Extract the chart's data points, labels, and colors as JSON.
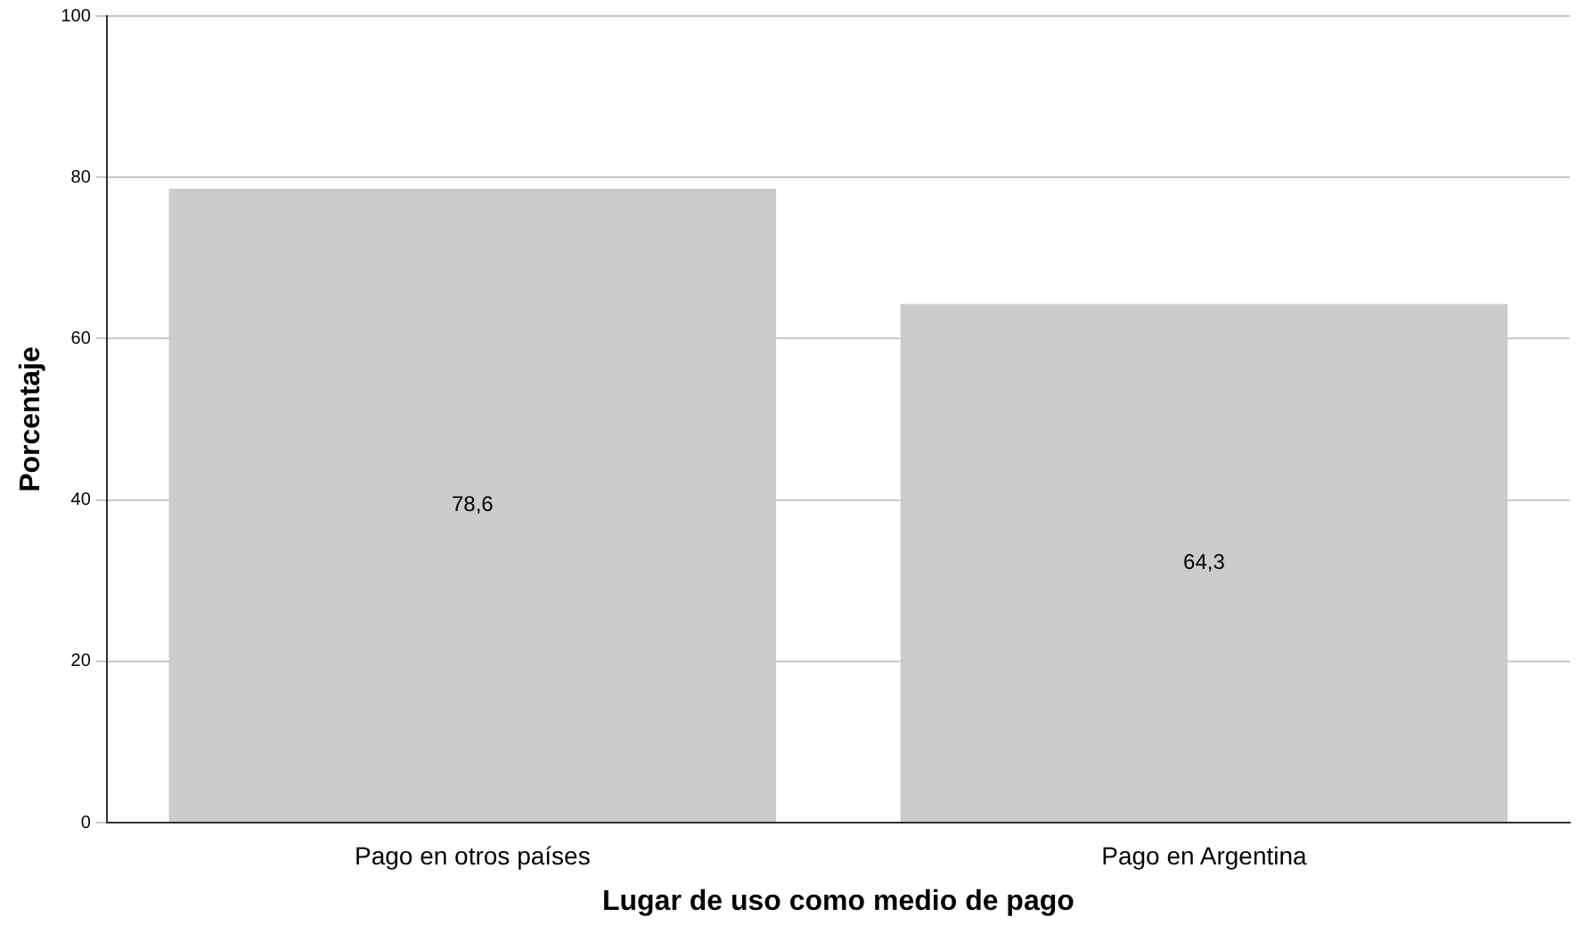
{
  "chart_data": {
    "type": "bar",
    "xlabel": "Lugar de uso como medio de pago",
    "ylabel": "Porcentaje",
    "categories": [
      "Pago en otros países",
      "Pago en Argentina"
    ],
    "values": [
      78.6,
      64.3
    ],
    "color": "#cccccc",
    "value_labels": [
      "78,6",
      "64,3"
    ],
    "ylim": [
      0,
      100
    ],
    "yticks": [
      0,
      20,
      40,
      60,
      80,
      100
    ],
    "grid": "y"
  }
}
